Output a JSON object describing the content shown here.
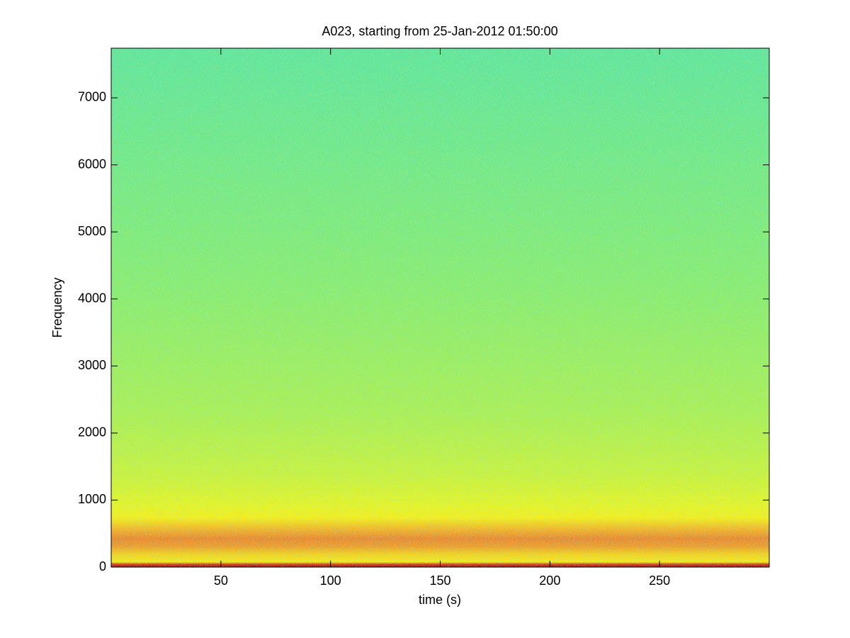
{
  "chart_data": {
    "type": "spectrogram",
    "title": "A023, starting from 25-Jan-2012 01:50:00",
    "x_label": "time (s)",
    "y_label": "Frequency",
    "xlim": [
      0,
      300
    ],
    "xticks": [
      50,
      100,
      150,
      200,
      250
    ],
    "ylim": [
      0,
      7740
    ],
    "yticks": [
      0,
      1000,
      2000,
      3000,
      4000,
      5000,
      6000,
      7000
    ]
  }
}
